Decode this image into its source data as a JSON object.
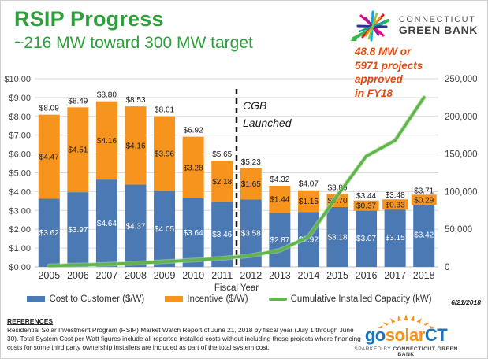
{
  "header": {
    "title": "RSIP Progress",
    "subtitle": "~216 MW toward 300 MW target",
    "logo": {
      "line1": "CONNECTICUT",
      "line2": "GREEN BANK"
    }
  },
  "annotation": {
    "lines": [
      "48.8 MW or",
      "5971 projects",
      "approved",
      "in FY18"
    ],
    "color": "#e2490f"
  },
  "chart_data": {
    "type": "bar",
    "subtype": "stacked-bar-with-line-overlay",
    "title": "",
    "xlabel": "Fiscal Year",
    "categories": [
      "2005",
      "2006",
      "2007",
      "2008",
      "2009",
      "2010",
      "2011",
      "2012",
      "2013",
      "2014",
      "2015",
      "2016",
      "2017",
      "2018"
    ],
    "series": [
      {
        "name": "Cost to Customer ($/W)",
        "type": "bar",
        "axis": "left",
        "color": "#4b79b3",
        "values": [
          3.62,
          3.97,
          4.64,
          4.37,
          4.05,
          3.64,
          3.46,
          3.58,
          2.87,
          2.92,
          3.18,
          3.07,
          3.15,
          3.42
        ]
      },
      {
        "name": "Incentive ($/W)",
        "type": "bar",
        "axis": "left",
        "color": "#f6941d",
        "values": [
          4.47,
          4.51,
          4.16,
          4.16,
          3.96,
          3.28,
          2.18,
          1.65,
          1.44,
          1.15,
          0.7,
          0.37,
          0.33,
          0.29
        ]
      },
      {
        "name": "Cumulative Installed Capacity (kW)",
        "type": "line",
        "axis": "right",
        "color": "#5fb44a",
        "values": [
          1500,
          2500,
          3500,
          5000,
          7000,
          9000,
          11500,
          15000,
          22000,
          40000,
          95000,
          147000,
          168000,
          225000
        ]
      }
    ],
    "total_labels": [
      8.09,
      8.49,
      8.8,
      8.53,
      8.01,
      6.92,
      5.65,
      5.23,
      4.32,
      4.07,
      3.89,
      3.44,
      3.48,
      3.71
    ],
    "left_axis": {
      "min": 0,
      "max": 10,
      "step": 1,
      "format": "currency"
    },
    "right_axis": {
      "min": 0,
      "max": 250000,
      "step": 50000,
      "format": "thousands"
    },
    "grid": true,
    "legend_position": "bottom",
    "event_line": {
      "label_lines": [
        "CGB",
        "Launched"
      ],
      "after_category_index": 6
    }
  },
  "stamp_date": "6/21/2018",
  "references": {
    "title": "REFERENCES",
    "body": "Residential Solar Investment Program (RSIP) Market Watch Report of June 21, 2018 by fiscal year (July 1 through June 30). Total System Cost per Watt figures include all reported installed costs without including those projects where financing costs for some third party ownership installers are included as part of the total system cost."
  },
  "gosolar": {
    "part1": "go",
    "part2": "solar",
    "part3": "CT",
    "tagline_prefix": "SPARKED BY ",
    "tagline_bold": "CONNECTICUT GREEN BANK"
  }
}
